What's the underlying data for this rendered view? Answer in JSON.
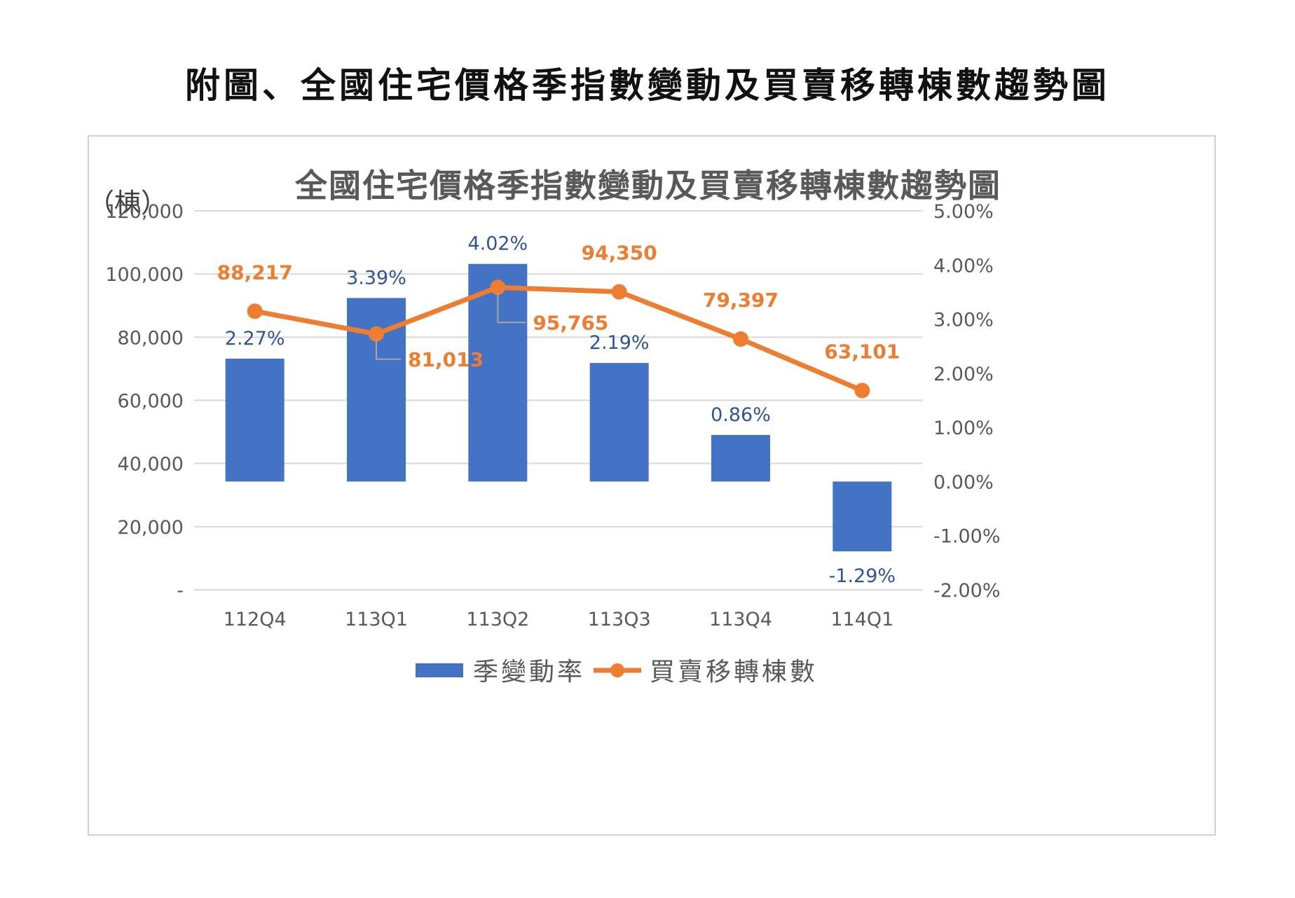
{
  "figure_title": "附圖、全國住宅價格季指數變動及買賣移轉棟數趨勢圖",
  "colors": {
    "bar": "#4472C4",
    "line": "#ED7D31",
    "grid": "#D9D9D9",
    "axis_text": "#595959"
  },
  "chart_data": {
    "type": "bar",
    "title": "全國住宅價格季指數變動及買賣移轉棟數趨勢圖",
    "unit_label": "（棟）",
    "categories": [
      "112Q4",
      "113Q1",
      "113Q2",
      "113Q3",
      "113Q4",
      "114Q1"
    ],
    "left_axis": {
      "ylim": [
        0,
        120000
      ],
      "ticks": [
        "120,000",
        "100,000",
        "80,000",
        "60,000",
        "40,000",
        "20,000",
        "-"
      ]
    },
    "right_axis": {
      "ylim": [
        -2.0,
        5.0
      ],
      "ticks": [
        "5.00%",
        "4.00%",
        "3.00%",
        "2.00%",
        "1.00%",
        "0.00%",
        "-1.00%",
        "-2.00%"
      ]
    },
    "series": [
      {
        "name": "季變動率",
        "type": "bar",
        "axis": "right",
        "values": [
          2.27,
          3.39,
          4.02,
          2.19,
          0.86,
          -1.29
        ],
        "labels": [
          "2.27%",
          "3.39%",
          "4.02%",
          "2.19%",
          "0.86%",
          "-1.29%"
        ]
      },
      {
        "name": "買賣移轉棟數",
        "type": "line",
        "axis": "left",
        "values": [
          88217,
          81013,
          95765,
          94350,
          79397,
          63101
        ],
        "labels": [
          "88,217",
          "81,013",
          "95,765",
          "94,350",
          "79,397",
          "63,101"
        ]
      }
    ],
    "grid": true,
    "legend": "bottom"
  }
}
